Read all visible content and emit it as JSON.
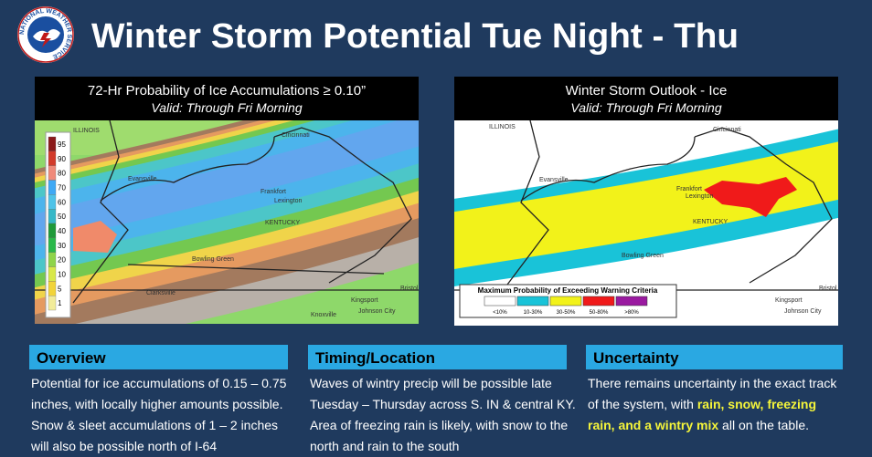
{
  "header": {
    "title": "Winter Storm Potential Tue Night - Thu",
    "logo_text": "NATIONAL WEATHER SERVICE"
  },
  "left_map": {
    "title": "72-Hr Probability of Ice Accumulations ≥ 0.10”",
    "subtitle": "Valid: Through Fri Morning",
    "legend": [
      {
        "label": 95,
        "color": "#8b1a1a"
      },
      {
        "label": 90,
        "color": "#d23b2b"
      },
      {
        "label": 80,
        "color": "#f08a7a"
      },
      {
        "label": 70,
        "color": "#3fa9f5"
      },
      {
        "label": 60,
        "color": "#4ec3e8"
      },
      {
        "label": 50,
        "color": "#36b8c8"
      },
      {
        "label": 40,
        "color": "#1f9a3a"
      },
      {
        "label": 30,
        "color": "#2ab84a"
      },
      {
        "label": 20,
        "color": "#8fd44a"
      },
      {
        "label": 10,
        "color": "#d8e84a"
      },
      {
        "label": 5,
        "color": "#f2d43a"
      },
      {
        "label": 1,
        "color": "#f2ec9a"
      }
    ],
    "places": [
      "ILLINOIS",
      "Cincinnati",
      "Evansville",
      "Frankfort",
      "Lexington",
      "KENTUCKY",
      "Bowling Green",
      "Clarksville",
      "Knoxville",
      "Kingsport",
      "Johnson City",
      "Bristol"
    ]
  },
  "right_map": {
    "title": "Winter Storm Outlook - Ice",
    "subtitle": "Valid: Through Fri Morning",
    "legend_title": "Maximum Probability of Exceeding Warning Criteria",
    "legend": [
      {
        "label": "<10%",
        "color": "#ffffff"
      },
      {
        "label": "10-30%",
        "color": "#19c3d8"
      },
      {
        "label": "30-50%",
        "color": "#f2f21a"
      },
      {
        "label": "50-80%",
        "color": "#f01a1a"
      },
      {
        "label": ">80%",
        "color": "#9a1aa0"
      }
    ],
    "places": [
      "ILLINOIS",
      "Cincinnati",
      "Evansville",
      "Frankfort",
      "Lexington",
      "KENTUCKY",
      "Bowling Green",
      "Kingsport",
      "Johnson City",
      "Bristol"
    ]
  },
  "sections": [
    {
      "heading": "Overview",
      "text": [
        "Potential for ice accumulations of 0.15 – 0.75 inches, with locally higher amounts possible. Snow & sleet accumulations of 1 – 2  inches will also be possible north of I-64"
      ]
    },
    {
      "heading": "Timing/Location",
      "text": [
        "Waves of wintry precip will be possible late Tuesday – Thursday across S. IN & central KY. Area of freezing rain is likely, with snow to the north and rain to the south"
      ]
    },
    {
      "heading": "Uncertainty",
      "text": [
        "There remains uncertainty in the exact track of the system, with ",
        "rain, snow, freezing rain, and a wintry mix",
        " all on the table."
      ]
    }
  ]
}
